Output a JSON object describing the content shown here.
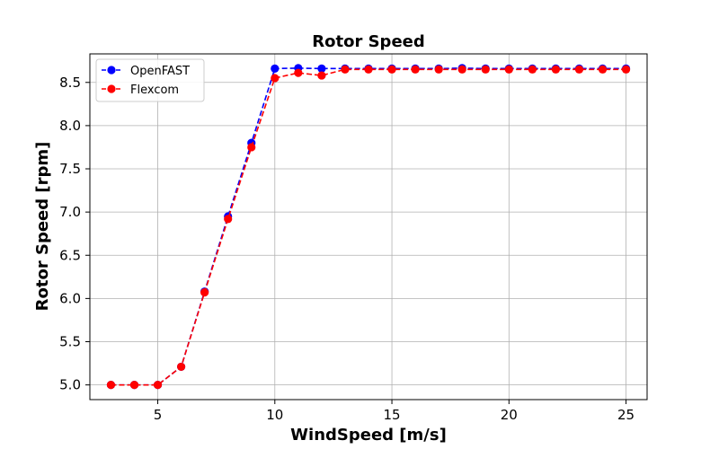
{
  "chart_data": {
    "type": "line",
    "title": "Rotor Speed",
    "xlabel": "WindSpeed [m/s]",
    "ylabel": "Rotor Speed [rpm]",
    "xlim": [
      2.1,
      25.9
    ],
    "ylim": [
      4.83,
      8.83
    ],
    "xticks": [
      5,
      10,
      15,
      20,
      25
    ],
    "xtick_labels": [
      "5",
      "10",
      "15",
      "20",
      "25"
    ],
    "yticks": [
      5.0,
      5.5,
      6.0,
      6.5,
      7.0,
      7.5,
      8.0,
      8.5
    ],
    "ytick_labels": [
      "5.0",
      "5.5",
      "6.0",
      "6.5",
      "7.0",
      "7.5",
      "8.0",
      "8.5"
    ],
    "grid": true,
    "legend_position": "top-left",
    "x": [
      3,
      4,
      5,
      6,
      7,
      8,
      9,
      10,
      11,
      12,
      13,
      14,
      15,
      16,
      17,
      18,
      19,
      20,
      21,
      22,
      23,
      24,
      25
    ],
    "series": [
      {
        "name": "OpenFAST",
        "color": "#0000ff",
        "values": [
          5.0,
          5.0,
          5.0,
          5.21,
          6.08,
          6.95,
          7.8,
          8.66,
          8.665,
          8.66,
          8.66,
          8.66,
          8.66,
          8.66,
          8.66,
          8.665,
          8.66,
          8.66,
          8.66,
          8.66,
          8.66,
          8.66,
          8.66
        ]
      },
      {
        "name": "Flexcom",
        "color": "#ff0000",
        "values": [
          5.0,
          5.0,
          5.0,
          5.21,
          6.07,
          6.92,
          7.75,
          8.55,
          8.61,
          8.58,
          8.65,
          8.65,
          8.65,
          8.65,
          8.65,
          8.65,
          8.65,
          8.65,
          8.65,
          8.65,
          8.65,
          8.65,
          8.65
        ]
      }
    ]
  }
}
